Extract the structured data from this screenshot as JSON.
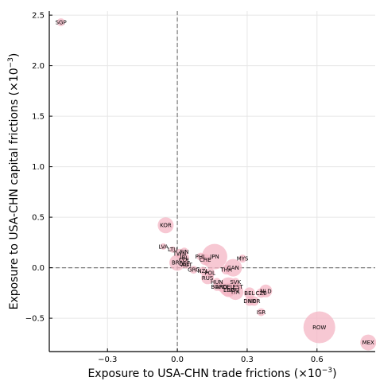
{
  "chart_data": {
    "type": "scatter",
    "title": "",
    "xlabel": "Exposure to USA-CHN trade frictions (×10",
    "xlabel_exp": "−3",
    "xlabel_close": ")",
    "ylabel": "Exposure to USA-CHN capital frictions (×10",
    "ylabel_exp": "−3",
    "ylabel_close": ")",
    "xlim": [
      -0.55,
      0.85
    ],
    "ylim": [
      -0.83,
      2.54
    ],
    "x_ticks": [
      -0.3,
      0.0,
      0.3,
      0.6
    ],
    "x_tick_labels": [
      "−0.3",
      "0.0",
      "0.3",
      "0.6"
    ],
    "y_ticks": [
      -0.5,
      0.0,
      0.5,
      1.0,
      1.5,
      2.0,
      2.5
    ],
    "y_tick_labels": [
      "−0.5",
      "0.0",
      "0.5",
      "1.0",
      "1.5",
      "2.0",
      "2.5"
    ],
    "grid": true,
    "reference_lines": {
      "x": 0.0,
      "y": 0.0
    },
    "marker_color": "#f4b6c4",
    "points": [
      {
        "label": "SGP",
        "x": -0.5,
        "y": 2.43,
        "size": 3
      },
      {
        "label": "KOR",
        "x": -0.05,
        "y": 0.42,
        "size": 8
      },
      {
        "label": "LVA",
        "x": -0.06,
        "y": 0.21,
        "size": 2
      },
      {
        "label": "LTU",
        "x": -0.02,
        "y": 0.18,
        "size": 2
      },
      {
        "label": "FIN",
        "x": 0.03,
        "y": 0.16,
        "size": 3
      },
      {
        "label": "TWN",
        "x": 0.01,
        "y": 0.14,
        "size": 4
      },
      {
        "label": "IRL",
        "x": 0.03,
        "y": 0.1,
        "size": 4
      },
      {
        "label": "COL",
        "x": 0.03,
        "y": 0.08,
        "size": 3
      },
      {
        "label": "PHL",
        "x": 0.1,
        "y": 0.11,
        "size": 3
      },
      {
        "label": "JPN",
        "x": 0.16,
        "y": 0.11,
        "size": 14
      },
      {
        "label": "CHE",
        "x": 0.12,
        "y": 0.08,
        "size": 5
      },
      {
        "label": "BRA",
        "x": 0.0,
        "y": 0.05,
        "size": 8
      },
      {
        "label": "LBE",
        "x": 0.03,
        "y": 0.04,
        "size": 3
      },
      {
        "label": "AUT",
        "x": 0.04,
        "y": 0.03,
        "size": 3
      },
      {
        "label": "MYS",
        "x": 0.28,
        "y": 0.09,
        "size": 3
      },
      {
        "label": "CAN",
        "x": 0.24,
        "y": 0.0,
        "size": 9
      },
      {
        "label": "THA",
        "x": 0.21,
        "y": -0.02,
        "size": 4
      },
      {
        "label": "GRC",
        "x": 0.07,
        "y": -0.02,
        "size": 3
      },
      {
        "label": "NZL",
        "x": 0.11,
        "y": -0.03,
        "size": 3
      },
      {
        "label": "POL",
        "x": 0.14,
        "y": -0.05,
        "size": 4
      },
      {
        "label": "RUS",
        "x": 0.13,
        "y": -0.1,
        "size": 6
      },
      {
        "label": "HUN",
        "x": 0.17,
        "y": -0.14,
        "size": 3
      },
      {
        "label": "SVK",
        "x": 0.25,
        "y": -0.14,
        "size": 3
      },
      {
        "label": "BGR",
        "x": 0.17,
        "y": -0.19,
        "size": 3
      },
      {
        "label": "ARG",
        "x": 0.19,
        "y": -0.19,
        "size": 4
      },
      {
        "label": "DEU",
        "x": 0.22,
        "y": -0.19,
        "size": 10
      },
      {
        "label": "EST",
        "x": 0.26,
        "y": -0.19,
        "size": 3
      },
      {
        "label": "ESP",
        "x": 0.22,
        "y": -0.22,
        "size": 7
      },
      {
        "label": "ROU",
        "x": 0.24,
        "y": -0.22,
        "size": 4
      },
      {
        "label": "ITA",
        "x": 0.25,
        "y": -0.24,
        "size": 8
      },
      {
        "label": "NLD",
        "x": 0.38,
        "y": -0.23,
        "size": 6
      },
      {
        "label": "BEL",
        "x": 0.31,
        "y": -0.25,
        "size": 5
      },
      {
        "label": "CZE",
        "x": 0.36,
        "y": -0.25,
        "size": 4
      },
      {
        "label": "DNK",
        "x": 0.31,
        "y": -0.33,
        "size": 4
      },
      {
        "label": "NOR",
        "x": 0.33,
        "y": -0.33,
        "size": 4
      },
      {
        "label": "ISR",
        "x": 0.36,
        "y": -0.44,
        "size": 3
      },
      {
        "label": "ROW",
        "x": 0.61,
        "y": -0.59,
        "size": 18
      },
      {
        "label": "MEX",
        "x": 0.82,
        "y": -0.74,
        "size": 8
      }
    ]
  }
}
